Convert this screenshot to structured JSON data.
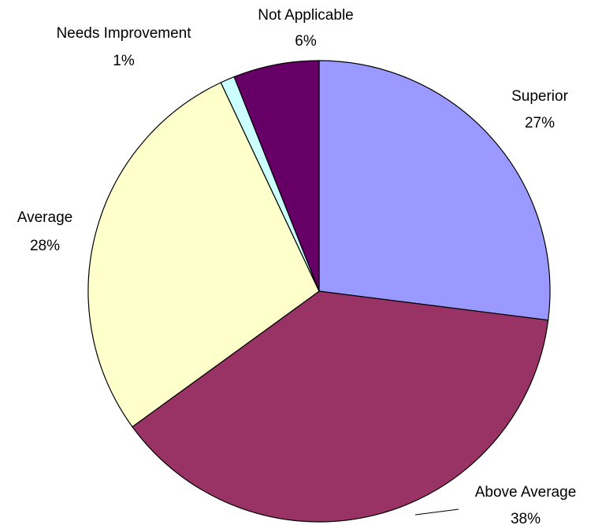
{
  "chart_data": {
    "type": "pie",
    "title": "",
    "legend": "none",
    "start_angle_deg": 0,
    "direction": "clockwise",
    "slices": [
      {
        "name": "Superior",
        "value": 27,
        "label": "27%",
        "color": "#9999FF"
      },
      {
        "name": "Above Average",
        "value": 38,
        "label": "38%",
        "color": "#993366"
      },
      {
        "name": "Average",
        "value": 28,
        "label": "28%",
        "color": "#FFFFCC"
      },
      {
        "name": "Needs Improvement",
        "value": 1,
        "label": "1%",
        "color": "#CCFFFF"
      },
      {
        "name": "Not Applicable",
        "value": 6,
        "label": "6%",
        "color": "#660066"
      }
    ]
  }
}
